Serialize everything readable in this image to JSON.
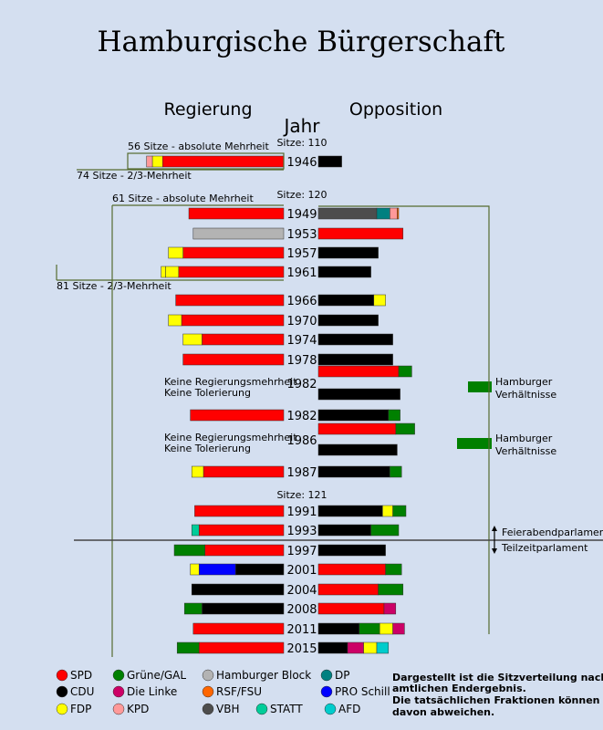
{
  "chart_data": {
    "type": "bar",
    "title": "Hamburgische Bürgerschaft",
    "left_heading": "Regierung",
    "right_heading": "Opposition",
    "year_heading": "Jahr",
    "unit": "Sitze",
    "parties": {
      "SPD": {
        "label": "SPD",
        "color": "#ff0000"
      },
      "CDU": {
        "label": "CDU",
        "color": "#000000"
      },
      "FDP": {
        "label": "FDP",
        "color": "#ffff00"
      },
      "GRUENE": {
        "label": "Grüne/GAL",
        "color": "#008000"
      },
      "LINKE": {
        "label": "Die Linke",
        "color": "#cc0066"
      },
      "KPD": {
        "label": "KPD",
        "color": "#ff9999"
      },
      "HB": {
        "label": "Hamburger Block",
        "color": "#b3b3b3"
      },
      "RSF": {
        "label": "RSF/FSU",
        "color": "#ff6600"
      },
      "VBH": {
        "label": "VBH",
        "color": "#4d4d4d"
      },
      "DP": {
        "label": "DP",
        "color": "#008080"
      },
      "SCHILL": {
        "label": "PRO Schill",
        "color": "#0000ff"
      },
      "STATT": {
        "label": "STATT",
        "color": "#00cc99"
      },
      "AFD": {
        "label": "AFD",
        "color": "#00cccc"
      }
    },
    "legend_order": [
      [
        "SPD",
        "GRUENE",
        "HB",
        "DP"
      ],
      [
        "CDU",
        "LINKE",
        "RSF",
        "SCHILL"
      ],
      [
        "FDP",
        "KPD",
        "VBH",
        "STATT",
        "AFD"
      ]
    ],
    "elections": [
      {
        "year": "1946",
        "government": [
          {
            "party": "SPD",
            "seats": 83
          },
          {
            "party": "FDP",
            "seats": 7
          },
          {
            "party": "KPD",
            "seats": 4
          }
        ],
        "opposition": [
          {
            "party": "CDU",
            "seats": 16
          }
        ]
      },
      {
        "year": "1949",
        "government": [
          {
            "party": "SPD",
            "seats": 65
          }
        ],
        "opposition": [
          {
            "party": "VBH",
            "seats": 40
          },
          {
            "party": "DP",
            "seats": 9
          },
          {
            "party": "KPD",
            "seats": 5
          },
          {
            "party": "RSF",
            "seats": 1
          }
        ]
      },
      {
        "year": "1953",
        "government": [
          {
            "party": "HB",
            "seats": 62
          }
        ],
        "opposition": [
          {
            "party": "SPD",
            "seats": 58
          }
        ]
      },
      {
        "year": "1957",
        "government": [
          {
            "party": "SPD",
            "seats": 69
          },
          {
            "party": "FDP",
            "seats": 10
          }
        ],
        "opposition": [
          {
            "party": "CDU",
            "seats": 41
          }
        ]
      },
      {
        "year": "1961",
        "government": [
          {
            "party": "SPD",
            "seats": 72
          },
          {
            "party": "FDP",
            "seats": 9
          },
          {
            "party": "FDP",
            "seats": 3
          }
        ],
        "opposition": [
          {
            "party": "CDU",
            "seats": 36
          }
        ]
      },
      {
        "year": "1966",
        "government": [
          {
            "party": "SPD",
            "seats": 74
          }
        ],
        "opposition": [
          {
            "party": "CDU",
            "seats": 38
          },
          {
            "party": "FDP",
            "seats": 8
          }
        ]
      },
      {
        "year": "1970",
        "government": [
          {
            "party": "SPD",
            "seats": 70
          },
          {
            "party": "FDP",
            "seats": 9
          }
        ],
        "opposition": [
          {
            "party": "CDU",
            "seats": 41
          }
        ]
      },
      {
        "year": "1974",
        "government": [
          {
            "party": "SPD",
            "seats": 56
          },
          {
            "party": "FDP",
            "seats": 13
          }
        ],
        "opposition": [
          {
            "party": "CDU",
            "seats": 51
          }
        ]
      },
      {
        "year": "1978",
        "government": [
          {
            "party": "SPD",
            "seats": 69
          }
        ],
        "opposition": [
          {
            "party": "CDU",
            "seats": 51
          }
        ]
      },
      {
        "year": "1982",
        "government_note": [
          "Keine Regierungsmehrheit",
          "Keine Tolerierung"
        ],
        "government": [],
        "opposition": [
          {
            "party": "SPD",
            "seats": 55
          },
          {
            "party": "GRUENE",
            "seats": 9
          }
        ],
        "opposition_row2": [
          {
            "party": "CDU",
            "seats": 56
          }
        ],
        "side_label": [
          "Hamburger",
          "Verhältnisse"
        ]
      },
      {
        "year": "1982",
        "government": [
          {
            "party": "SPD",
            "seats": 64
          }
        ],
        "opposition": [
          {
            "party": "CDU",
            "seats": 48
          },
          {
            "party": "GRUENE",
            "seats": 8
          }
        ]
      },
      {
        "year": "1986",
        "government_note": [
          "Keine Regierungsmehrheit",
          "Keine Tolerierung"
        ],
        "government": [],
        "opposition": [
          {
            "party": "SPD",
            "seats": 53
          },
          {
            "party": "GRUENE",
            "seats": 13
          }
        ],
        "opposition_row2": [
          {
            "party": "CDU",
            "seats": 54
          }
        ],
        "side_label": [
          "Hamburger",
          "Verhältnisse"
        ]
      },
      {
        "year": "1987",
        "government": [
          {
            "party": "SPD",
            "seats": 55
          },
          {
            "party": "FDP",
            "seats": 8
          }
        ],
        "opposition": [
          {
            "party": "CDU",
            "seats": 49
          },
          {
            "party": "GRUENE",
            "seats": 8
          }
        ]
      },
      {
        "year": "1991",
        "government": [
          {
            "party": "SPD",
            "seats": 61
          }
        ],
        "opposition": [
          {
            "party": "CDU",
            "seats": 44
          },
          {
            "party": "FDP",
            "seats": 7
          },
          {
            "party": "GRUENE",
            "seats": 9
          }
        ]
      },
      {
        "year": "1993",
        "government": [
          {
            "party": "SPD",
            "seats": 58
          },
          {
            "party": "STATT",
            "seats": 5
          }
        ],
        "opposition": [
          {
            "party": "CDU",
            "seats": 36
          },
          {
            "party": "GRUENE",
            "seats": 19
          }
        ],
        "side_label": [
          "Feierabendparlament",
          "Teilzeitparlament"
        ]
      },
      {
        "year": "1997",
        "government": [
          {
            "party": "SPD",
            "seats": 54
          },
          {
            "party": "GRUENE",
            "seats": 21
          }
        ],
        "opposition": [
          {
            "party": "CDU",
            "seats": 46
          }
        ]
      },
      {
        "year": "2001",
        "government": [
          {
            "party": "CDU",
            "seats": 33
          },
          {
            "party": "SCHILL",
            "seats": 25
          },
          {
            "party": "FDP",
            "seats": 6
          }
        ],
        "opposition": [
          {
            "party": "SPD",
            "seats": 46
          },
          {
            "party": "GRUENE",
            "seats": 11
          }
        ]
      },
      {
        "year": "2004",
        "government": [
          {
            "party": "CDU",
            "seats": 63
          }
        ],
        "opposition": [
          {
            "party": "SPD",
            "seats": 41
          },
          {
            "party": "GRUENE",
            "seats": 17
          }
        ]
      },
      {
        "year": "2008",
        "government": [
          {
            "party": "CDU",
            "seats": 56
          },
          {
            "party": "GRUENE",
            "seats": 12
          }
        ],
        "opposition": [
          {
            "party": "SPD",
            "seats": 45
          },
          {
            "party": "LINKE",
            "seats": 8
          }
        ]
      },
      {
        "year": "2011",
        "government": [
          {
            "party": "SPD",
            "seats": 62
          }
        ],
        "opposition": [
          {
            "party": "CDU",
            "seats": 28
          },
          {
            "party": "GRUENE",
            "seats": 14
          },
          {
            "party": "FDP",
            "seats": 9
          },
          {
            "party": "LINKE",
            "seats": 8
          }
        ]
      },
      {
        "year": "2015",
        "government": [
          {
            "party": "SPD",
            "seats": 58
          },
          {
            "party": "GRUENE",
            "seats": 15
          }
        ],
        "opposition": [
          {
            "party": "CDU",
            "seats": 20
          },
          {
            "party": "LINKE",
            "seats": 11
          },
          {
            "party": "FDP",
            "seats": 9
          },
          {
            "party": "AFD",
            "seats": 8
          }
        ]
      }
    ],
    "annotations": [
      {
        "text": "Sitze: 110",
        "row": 0
      },
      {
        "text": "56 Sitze - absolute Mehrheit",
        "row": 0
      },
      {
        "text": "74 Sitze - 2/3-Mehrheit",
        "row": 0
      },
      {
        "text": "Sitze: 120",
        "row": 1
      },
      {
        "text": "61 Sitze - absolute Mehrheit",
        "row": 1
      },
      {
        "text": "81 Sitze - 2/3-Mehrheit",
        "row": 4
      },
      {
        "text": "Sitze: 121",
        "row": 13
      }
    ],
    "footnote": [
      "Dargestellt ist die Sitzverteilung nach",
      "amtlichen Endergebnis.",
      "Die tatsächlichen Fraktionen können",
      "davon abweichen."
    ]
  }
}
